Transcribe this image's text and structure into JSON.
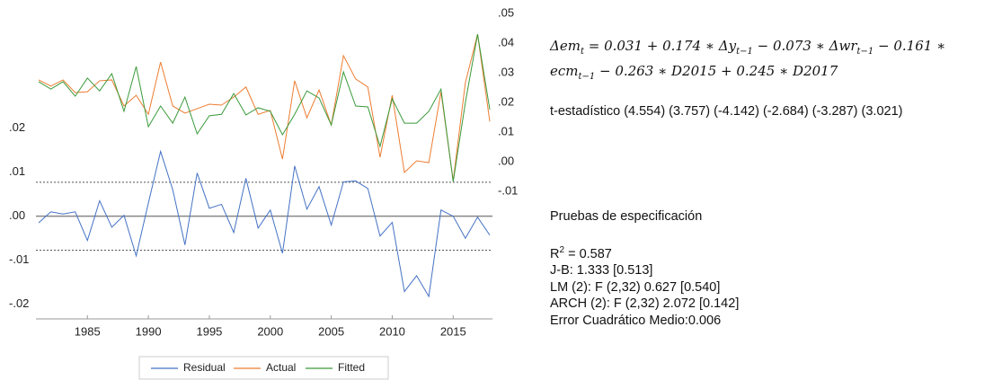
{
  "chart_data": {
    "type": "line",
    "x": [
      1981,
      1982,
      1983,
      1984,
      1985,
      1986,
      1987,
      1988,
      1989,
      1990,
      1991,
      1992,
      1993,
      1994,
      1995,
      1996,
      1997,
      1998,
      1999,
      2000,
      2001,
      2002,
      2003,
      2004,
      2005,
      2006,
      2007,
      2008,
      2009,
      2010,
      2011,
      2012,
      2013,
      2014,
      2015,
      2016,
      2017,
      2018
    ],
    "xlim": [
      1981,
      2018
    ],
    "xticks": [
      1985,
      1990,
      1995,
      2000,
      2005,
      2010,
      2015
    ],
    "ylim": [
      -0.0233,
      0.046
    ],
    "yticks": [
      {
        "value": -0.02,
        "label": "-.02"
      },
      {
        "value": -0.01,
        "label": "-.01"
      },
      {
        "value": 0,
        "label": ".00"
      },
      {
        "value": 0.01,
        "label": ".01"
      },
      {
        "value": 0.02,
        "label": ".02"
      }
    ],
    "y2lim": [
      -0.053,
      0.05
    ],
    "y2ticks": [
      {
        "value": -0.01,
        "label": "-.01"
      },
      {
        "value": 0,
        "label": ".00"
      },
      {
        "value": 0.01,
        "label": ".01"
      },
      {
        "value": 0.02,
        "label": ".02"
      },
      {
        "value": 0.03,
        "label": ".03"
      },
      {
        "value": 0.04,
        "label": ".04"
      },
      {
        "value": 0.05,
        "label": ".05"
      }
    ],
    "hlines": [
      {
        "value": 0,
        "style": "solid"
      },
      {
        "value": 0.0077,
        "style": "dashed"
      },
      {
        "value": -0.0077,
        "style": "dashed"
      }
    ],
    "legend": "bottom",
    "series": [
      {
        "name": "Residual",
        "color": "#4472c4",
        "axis": "y",
        "values": [
          -0.0015,
          0.001,
          0.0005,
          0.001,
          -0.0055,
          0.0035,
          -0.0025,
          0.0002,
          -0.009,
          0.003,
          0.0147,
          0.006,
          -0.0065,
          0.0098,
          0.0018,
          0.0027,
          -0.0037,
          0.0086,
          -0.0027,
          0.0014,
          -0.0084,
          0.0114,
          0.0016,
          0.0067,
          -0.002,
          0.0078,
          0.008,
          0.0063,
          -0.0045,
          -0.0014,
          -0.0171,
          -0.0135,
          -0.0182,
          0.0014,
          0.0,
          -0.005,
          -0.0002,
          -0.0043
        ]
      },
      {
        "name": "Actual",
        "color": "#ed7d31",
        "axis": "y2",
        "values": [
          0.0276,
          0.0255,
          0.0276,
          0.0233,
          0.0236,
          0.0273,
          0.0276,
          0.0188,
          0.0224,
          0.016,
          0.0336,
          0.0188,
          0.0164,
          0.0179,
          0.0194,
          0.0191,
          0.0218,
          0.0252,
          0.016,
          0.0173,
          0.0009,
          0.0273,
          0.0148,
          0.0242,
          0.0124,
          0.0358,
          0.0279,
          0.0252,
          0.0015,
          0.0224,
          -0.0036,
          0.0003,
          -0.0003,
          0.0236,
          -0.0064,
          0.0267,
          0.043,
          0.0136
        ]
      },
      {
        "name": "Fitted",
        "color": "#3a9a3a",
        "axis": "y2",
        "values": [
          0.027,
          0.0245,
          0.027,
          0.0221,
          0.0282,
          0.0239,
          0.0297,
          0.017,
          0.0321,
          0.0118,
          0.0188,
          0.013,
          0.0218,
          0.0094,
          0.0155,
          0.016,
          0.023,
          0.0158,
          0.0182,
          0.017,
          0.0091,
          0.016,
          0.0239,
          0.0215,
          0.0124,
          0.0303,
          0.0188,
          0.0185,
          0.0052,
          0.0212,
          0.013,
          0.013,
          0.017,
          0.0245,
          -0.0067,
          0.02,
          0.043,
          0.0176
        ]
      }
    ]
  },
  "panel": {
    "equation": [
      [
        {
          "text": "Δem",
          "sub": "t"
        },
        {
          "text": " = 0.031 + 0.174 ∗ Δy",
          "sub": "t−1"
        },
        {
          "text": " −  0.073 ∗ Δwr",
          "sub": "t−1"
        },
        {
          "text": " − 0.161 ∗"
        }
      ],
      [
        {
          "text": "ecm",
          "sub": "t−1"
        },
        {
          "text": " − 0.263 ∗ D2015 + 0.245 ∗ D2017"
        }
      ]
    ],
    "t_stats": "t-estadístico (4.554) (3.757) (-4.142)  (-2.684) (-3.287) (3.021)",
    "tests_title": "Pruebas de especificación",
    "r2": {
      "text": "R",
      "sup": "2",
      "rest": " = 0.587"
    },
    "tests": [
      "J-B: 1.333 [0.513]",
      "LM (2): F (2,32) 0.627 [0.540]",
      "ARCH (2): F (2,32) 2.072 [0.142]",
      "Error Cuadrático Medio:0.006"
    ]
  }
}
